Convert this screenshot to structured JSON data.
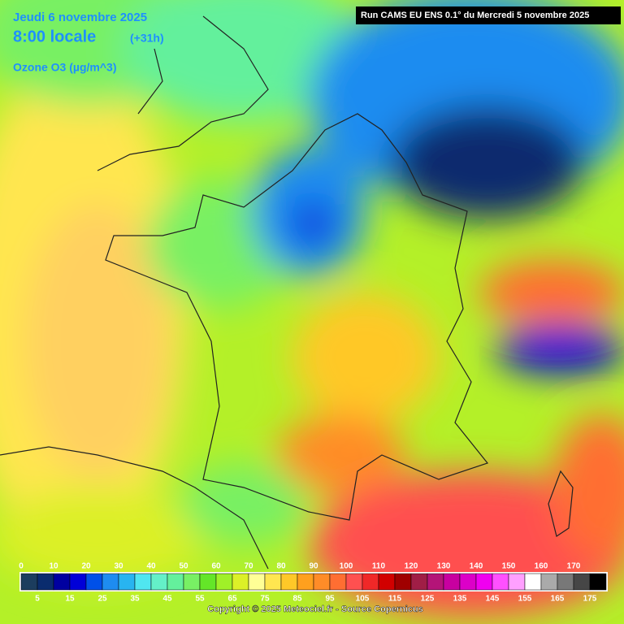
{
  "header": {
    "date": "Jeudi 6 novembre 2025",
    "time": "8:00 locale",
    "lead": "(+31h)",
    "variable": "Ozone O3 (µg/m^3)",
    "run": "Run CAMS EU ENS 0.1° du Mercredi 5 novembre 2025"
  },
  "legend": {
    "colors": [
      "#1c3d5e",
      "#0a2c6e",
      "#0000a0",
      "#0000d8",
      "#0050e8",
      "#1e8cf0",
      "#28b4f0",
      "#50e6f0",
      "#64f0c8",
      "#64f09c",
      "#78f064",
      "#64e628",
      "#a0f028",
      "#dcf028",
      "#ffff96",
      "#ffe650",
      "#ffc828",
      "#ffa01e",
      "#ff8c28",
      "#ff6e32",
      "#ff5050",
      "#f02828",
      "#d20000",
      "#a00000",
      "#a01e46",
      "#b41478",
      "#c800a0",
      "#dc00c8",
      "#f000f0",
      "#ff50ff",
      "#ffa0ff",
      "#ffffff",
      "#aaaaaa",
      "#787878",
      "#464646",
      "#000000"
    ],
    "top_labels": [
      0,
      10,
      20,
      30,
      40,
      50,
      60,
      70,
      80,
      90,
      100,
      110,
      120,
      130,
      140,
      150,
      160,
      170
    ],
    "bottom_labels": [
      5,
      15,
      25,
      35,
      45,
      55,
      65,
      75,
      85,
      95,
      105,
      115,
      125,
      135,
      145,
      155,
      165,
      175
    ]
  },
  "footer": {
    "copyright": "Copyright © 2025 Meteociel.fr - Source Copernicus"
  }
}
